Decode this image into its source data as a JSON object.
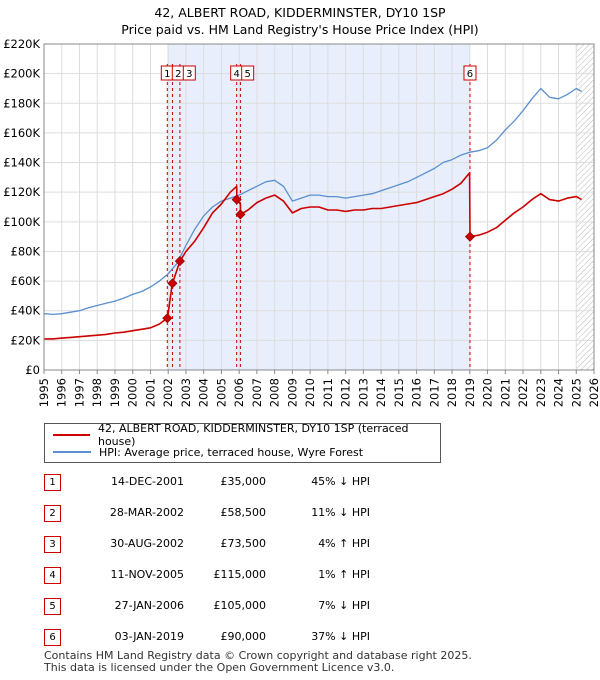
{
  "title_line1": "42, ALBERT ROAD, KIDDERMINSTER, DY10 1SP",
  "title_line2": "Price paid vs. HM Land Registry's House Price Index (HPI)",
  "legend": {
    "red_label": "42, ALBERT ROAD, KIDDERMINSTER, DY10 1SP (terraced house)",
    "blue_label": "HPI: Average price, terraced house, Wyre Forest"
  },
  "colors": {
    "red": "#cc0000",
    "blue": "#5b8fd0",
    "shade": "#e8eefb",
    "grid": "#dddddd",
    "marker": "#cc0000"
  },
  "transactions": [
    {
      "num": "1",
      "date": "14-DEC-2001",
      "price": "£35,000",
      "hpi": "45% ↓ HPI"
    },
    {
      "num": "2",
      "date": "28-MAR-2002",
      "price": "£58,500",
      "hpi": "11% ↓ HPI"
    },
    {
      "num": "3",
      "date": "30-AUG-2002",
      "price": "£73,500",
      "hpi": "4% ↑ HPI"
    },
    {
      "num": "4",
      "date": "11-NOV-2005",
      "price": "£115,000",
      "hpi": "1% ↑ HPI"
    },
    {
      "num": "5",
      "date": "27-JAN-2006",
      "price": "£105,000",
      "hpi": "7% ↓ HPI"
    },
    {
      "num": "6",
      "date": "03-JAN-2019",
      "price": "£90,000",
      "hpi": "37% ↓ HPI"
    }
  ],
  "footer_line1": "Contains HM Land Registry data © Crown copyright and database right 2025.",
  "footer_line2": "This data is licensed under the Open Government Licence v3.0.",
  "chart_data": {
    "type": "line",
    "title": "42, ALBERT ROAD, KIDDERMINSTER, DY10 1SP — Price paid vs. HM Land Registry's House Price Index (HPI)",
    "xlabel": "",
    "ylabel": "",
    "xlim": [
      1995,
      2026
    ],
    "ylim": [
      0,
      220000
    ],
    "x_ticks": [
      1995,
      1996,
      1997,
      1998,
      1999,
      2000,
      2001,
      2002,
      2003,
      2004,
      2005,
      2006,
      2007,
      2008,
      2009,
      2010,
      2011,
      2012,
      2013,
      2014,
      2015,
      2016,
      2017,
      2018,
      2019,
      2020,
      2021,
      2022,
      2023,
      2024,
      2025,
      2026
    ],
    "y_ticks": [
      0,
      20000,
      40000,
      60000,
      80000,
      100000,
      120000,
      140000,
      160000,
      180000,
      200000,
      220000
    ],
    "y_tick_labels": [
      "£0",
      "£20K",
      "£40K",
      "£60K",
      "£80K",
      "£100K",
      "£120K",
      "£140K",
      "£160K",
      "£180K",
      "£200K",
      "£220K"
    ],
    "grid": true,
    "shaded_span": [
      2001.95,
      2019.01
    ],
    "projection_from": 2025.0,
    "series": [
      {
        "name": "HPI: Average price, terraced house, Wyre Forest",
        "color": "#5b8fd0",
        "x": [
          1995.0,
          1995.5,
          1996.0,
          1996.5,
          1997.0,
          1997.5,
          1998.0,
          1998.5,
          1999.0,
          1999.5,
          2000.0,
          2000.5,
          2001.0,
          2001.5,
          2002.0,
          2002.5,
          2003.0,
          2003.5,
          2004.0,
          2004.5,
          2005.0,
          2005.5,
          2006.0,
          2006.5,
          2007.0,
          2007.5,
          2008.0,
          2008.5,
          2009.0,
          2009.5,
          2010.0,
          2010.5,
          2011.0,
          2011.5,
          2012.0,
          2012.5,
          2013.0,
          2013.5,
          2014.0,
          2014.5,
          2015.0,
          2015.5,
          2016.0,
          2016.5,
          2017.0,
          2017.5,
          2018.0,
          2018.5,
          2019.0,
          2019.5,
          2020.0,
          2020.5,
          2021.0,
          2021.5,
          2022.0,
          2022.5,
          2023.0,
          2023.5,
          2024.0,
          2024.5,
          2025.0,
          2025.3
        ],
        "y": [
          38000,
          37500,
          38000,
          39000,
          40000,
          42000,
          43500,
          45000,
          46500,
          48500,
          51000,
          53000,
          56000,
          60000,
          65000,
          72000,
          84000,
          95000,
          104000,
          110000,
          114000,
          116000,
          118000,
          121000,
          124000,
          127000,
          128000,
          124000,
          114000,
          116000,
          118000,
          118000,
          117000,
          117000,
          116000,
          117000,
          118000,
          119000,
          121000,
          123000,
          125000,
          127000,
          130000,
          133000,
          136000,
          140000,
          142000,
          145000,
          147000,
          148000,
          150000,
          155000,
          162000,
          168000,
          175000,
          183000,
          190000,
          184000,
          183000,
          186000,
          190000,
          188000
        ]
      },
      {
        "name": "42, ALBERT ROAD, KIDDERMINSTER, DY10 1SP (terraced house)",
        "color": "#cc0000",
        "x": [
          1995.0,
          1995.5,
          1996.0,
          1996.5,
          1997.0,
          1997.5,
          1998.0,
          1998.5,
          1999.0,
          1999.5,
          2000.0,
          2000.5,
          2001.0,
          2001.5,
          2001.95,
          2001.96,
          2002.23,
          2002.24,
          2002.66,
          2002.67,
          2003.0,
          2003.5,
          2004.0,
          2004.5,
          2005.0,
          2005.5,
          2005.86,
          2005.87,
          2006.07,
          2006.08,
          2006.5,
          2007.0,
          2007.5,
          2008.0,
          2008.5,
          2009.0,
          2009.5,
          2010.0,
          2010.5,
          2011.0,
          2011.5,
          2012.0,
          2012.5,
          2013.0,
          2013.5,
          2014.0,
          2014.5,
          2015.0,
          2015.5,
          2016.0,
          2016.5,
          2017.0,
          2017.5,
          2018.0,
          2018.5,
          2018.99,
          2019.01,
          2019.5,
          2020.0,
          2020.5,
          2021.0,
          2021.5,
          2022.0,
          2022.5,
          2023.0,
          2023.5,
          2024.0,
          2024.5,
          2025.0,
          2025.3
        ],
        "y": [
          21000,
          21000,
          21500,
          22000,
          22500,
          23000,
          23500,
          24000,
          25000,
          25500,
          26500,
          27500,
          28500,
          31000,
          35000,
          35000,
          58500,
          58500,
          73500,
          73500,
          80000,
          87000,
          96000,
          106000,
          112000,
          120000,
          124000,
          115000,
          112000,
          105000,
          108000,
          113000,
          116000,
          118000,
          114000,
          106000,
          109000,
          110000,
          110000,
          108000,
          108000,
          107000,
          108000,
          108000,
          109000,
          109000,
          110000,
          111000,
          112000,
          113000,
          115000,
          117000,
          119000,
          122000,
          126000,
          133000,
          90000,
          91000,
          93000,
          96000,
          101000,
          106000,
          110000,
          115000,
          119000,
          115000,
          114000,
          116000,
          117000,
          115000
        ]
      }
    ],
    "sale_points": [
      {
        "label": "1",
        "x": 2001.95,
        "y": 35000
      },
      {
        "label": "2",
        "x": 2002.24,
        "y": 58500
      },
      {
        "label": "3",
        "x": 2002.66,
        "y": 73500
      },
      {
        "label": "4",
        "x": 2005.86,
        "y": 115000
      },
      {
        "label": "5",
        "x": 2006.07,
        "y": 105000
      },
      {
        "label": "6",
        "x": 2019.01,
        "y": 90000
      }
    ],
    "event_labels": [
      {
        "label": "1",
        "x": 2001.95
      },
      {
        "label": "2",
        "x": 2002.24
      },
      {
        "label": "3",
        "x": 2002.66
      },
      {
        "label": "4",
        "x": 2005.86
      },
      {
        "label": "5",
        "x": 2006.07
      },
      {
        "label": "6",
        "x": 2019.01
      }
    ]
  }
}
